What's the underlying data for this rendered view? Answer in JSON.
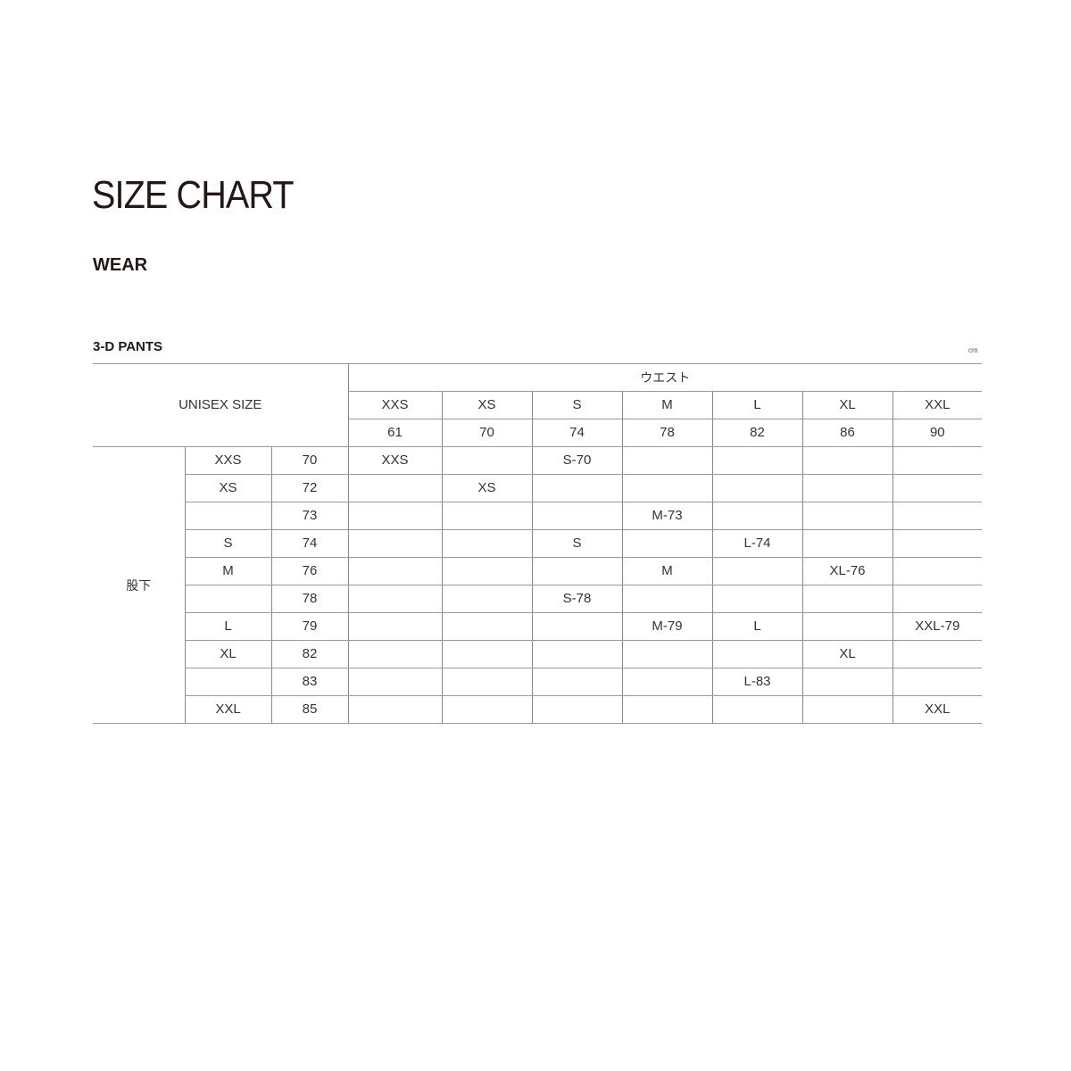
{
  "page": {
    "title": "SIZE CHART",
    "category": "WEAR",
    "section": "3-D PANTS",
    "unit": "cm"
  },
  "table": {
    "corner_label": "UNISEX SIZE",
    "waist_label": "ウエスト",
    "inseam_label": "股下",
    "waist_sizes": [
      "XXS",
      "XS",
      "S",
      "M",
      "L",
      "XL",
      "XXL"
    ],
    "waist_values": [
      "61",
      "70",
      "74",
      "78",
      "82",
      "86",
      "90"
    ],
    "rows": [
      {
        "size": "XXS",
        "inseam": "70",
        "cells": [
          "XXS",
          "",
          "S-70",
          "",
          "",
          "",
          ""
        ]
      },
      {
        "size": "XS",
        "inseam": "72",
        "cells": [
          "",
          "XS",
          "",
          "",
          "",
          "",
          ""
        ]
      },
      {
        "size": "",
        "inseam": "73",
        "cells": [
          "",
          "",
          "",
          "M-73",
          "",
          "",
          ""
        ]
      },
      {
        "size": "S",
        "inseam": "74",
        "cells": [
          "",
          "",
          "S",
          "",
          "L-74",
          "",
          ""
        ]
      },
      {
        "size": "M",
        "inseam": "76",
        "cells": [
          "",
          "",
          "",
          "M",
          "",
          "XL-76",
          ""
        ]
      },
      {
        "size": "",
        "inseam": "78",
        "cells": [
          "",
          "",
          "S-78",
          "",
          "",
          "",
          ""
        ]
      },
      {
        "size": "L",
        "inseam": "79",
        "cells": [
          "",
          "",
          "",
          "M-79",
          "L",
          "",
          "XXL-79"
        ]
      },
      {
        "size": "XL",
        "inseam": "82",
        "cells": [
          "",
          "",
          "",
          "",
          "",
          "XL",
          ""
        ]
      },
      {
        "size": "",
        "inseam": "83",
        "cells": [
          "",
          "",
          "",
          "",
          "L-83",
          "",
          ""
        ]
      },
      {
        "size": "XXL",
        "inseam": "85",
        "cells": [
          "",
          "",
          "",
          "",
          "",
          "",
          "XXL"
        ]
      }
    ]
  }
}
